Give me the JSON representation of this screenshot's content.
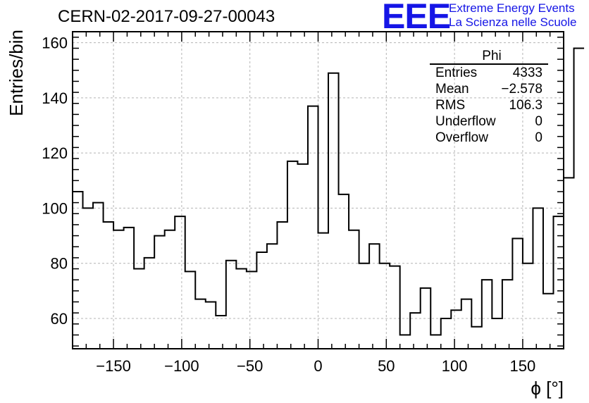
{
  "header": {
    "run_title": "CERN-02-2017-09-27-00043",
    "logo_mark": "EEE",
    "logo_line1": "Extreme Energy Events",
    "logo_line2": "La Scienza nelle Scuole"
  },
  "stats": {
    "title": "Phi",
    "rows": [
      {
        "label": "Entries",
        "value": "4333"
      },
      {
        "label": "Mean",
        "value": "−2.578"
      },
      {
        "label": "RMS",
        "value": "106.3"
      },
      {
        "label": "Underflow",
        "value": "0"
      },
      {
        "label": "Overflow",
        "value": "0"
      }
    ]
  },
  "chart_data": {
    "type": "bar",
    "histogram": true,
    "xlabel": "ϕ [°]",
    "ylabel": "Entries/bin",
    "xlim": [
      -180,
      180
    ],
    "ylim": [
      49,
      164
    ],
    "xticks": [
      -150,
      -100,
      -50,
      0,
      50,
      100,
      150
    ],
    "xtick_labels": [
      "−150",
      "−100",
      "−50",
      "0",
      "50",
      "100",
      "150"
    ],
    "yticks": [
      60,
      80,
      100,
      120,
      140,
      160
    ],
    "ytick_labels": [
      "60",
      "80",
      "100",
      "120",
      "140",
      "160"
    ],
    "bin_width": 7.5,
    "values": [
      106,
      100,
      102,
      95,
      92,
      93,
      78,
      82,
      90,
      92,
      97,
      77,
      67,
      66,
      61,
      81,
      78,
      77,
      84,
      87,
      95,
      117,
      116,
      137,
      91,
      149,
      105,
      92,
      80,
      87,
      80,
      79,
      54,
      62,
      71,
      54,
      60,
      63,
      67,
      57,
      74,
      60,
      74,
      89,
      80,
      100,
      69,
      97,
      111,
      158
    ],
    "grid": true,
    "line_color": "#000000"
  }
}
